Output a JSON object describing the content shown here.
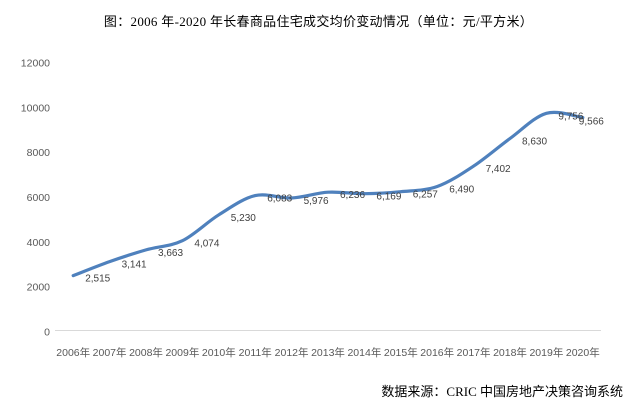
{
  "footer": {
    "source": "数据来源：CRIC 中国房地产决策咨询系统"
  },
  "colors": {
    "line": "#4F81BD",
    "axis_line": "#D9D9D9",
    "tick_text": "#595959",
    "data_label_text": "#404040",
    "title_text": "#000000",
    "background": "#FFFFFF"
  },
  "chart_data": {
    "type": "line",
    "title": "图：2006 年-2020 年长春商品住宅成交均价变动情况（单位：元/平方米）",
    "xlabel": "",
    "ylabel": "",
    "categories": [
      "2006年",
      "2007年",
      "2008年",
      "2009年",
      "2010年",
      "2011年",
      "2012年",
      "2013年",
      "2014年",
      "2015年",
      "2016年",
      "2017年",
      "2018年",
      "2019年",
      "2020年"
    ],
    "values": [
      2515,
      3141,
      3663,
      4074,
      5230,
      6083,
      5976,
      6236,
      6169,
      6257,
      6490,
      7402,
      8630,
      9756,
      9566
    ],
    "data_labels": [
      "2,515",
      "3,141",
      "3,663",
      "4,074",
      "5,230",
      "6,083",
      "5,976",
      "6,236",
      "6,169",
      "6,257",
      "6,490",
      "7,402",
      "8,630",
      "9,756",
      "9,566"
    ],
    "ylim": [
      0,
      12000
    ],
    "yticks": [
      0,
      2000,
      4000,
      6000,
      8000,
      10000,
      12000
    ],
    "grid": false,
    "legend": "none",
    "smooth": true
  }
}
